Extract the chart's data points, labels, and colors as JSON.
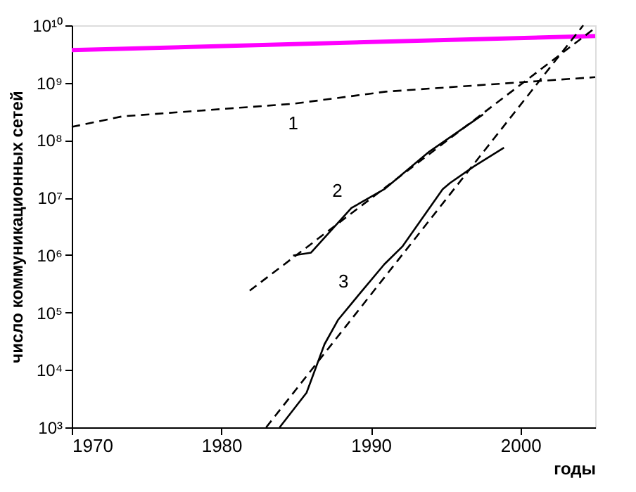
{
  "chart_data": {
    "type": "line",
    "xlabel": "годы",
    "ylabel": "число коммуникационных сетей",
    "log": "y",
    "grid": false,
    "marker": "none",
    "xlim": [
      1970,
      2005
    ],
    "xticks": [
      1970,
      1980,
      1990,
      2000
    ],
    "ylim": [
      1000,
      10000000000
    ],
    "yticks": [
      {
        "value": 1000,
        "label": "10³"
      },
      {
        "value": 10000,
        "label": "10⁴"
      },
      {
        "value": 100000,
        "label": "10⁵"
      },
      {
        "value": 1000000,
        "label": "10⁶"
      },
      {
        "value": 10000000,
        "label": "10⁷"
      },
      {
        "value": 100000000,
        "label": "10⁸"
      },
      {
        "value": 1000000000,
        "label": "10⁹"
      },
      {
        "value": 10000000000,
        "label": "10¹⁰"
      }
    ],
    "series": [
      {
        "color": "#ff00ff",
        "line_style": "solid",
        "x": [
          1970,
          2005
        ],
        "values": [
          3700000000,
          6500000000
        ]
      },
      {
        "color": "#000000",
        "line_style": "dashed",
        "x": [
          1970,
          1973.4,
          1984.8,
          1991,
          2005
        ],
        "values": [
          170000000,
          260000000,
          430000000,
          700000000,
          1250000000
        ]
      },
      {
        "color": "#000000",
        "line_style": "solid",
        "x": [
          1984.8,
          1986,
          1988.7,
          1990.9,
          1993.9,
          1997.5
        ],
        "values": [
          980000,
          1100000,
          6600000,
          14000000,
          63000000,
          280000000
        ]
      },
      {
        "color": "#000000",
        "line_style": "dashed",
        "x": [
          1981.9,
          2005
        ],
        "values": [
          240000,
          9000000000
        ]
      },
      {
        "color": "#000000",
        "line_style": "solid",
        "x": [
          1983.9,
          1985.7,
          1986.9,
          1987.8,
          1989.3,
          1990.9,
          1992.1,
          1994.8,
          1995.3,
          1996.9,
          1998.9
        ],
        "values": [
          1000,
          4000,
          28000,
          74000,
          220000,
          690000,
          1400000,
          14000000,
          18000000,
          35000000,
          74000000
        ]
      },
      {
        "color": "#000000",
        "line_style": "dashed",
        "x": [
          1983,
          2004.2
        ],
        "values": [
          1000,
          10000000000
        ]
      }
    ],
    "annotations": [
      "1",
      "2",
      "3"
    ]
  }
}
